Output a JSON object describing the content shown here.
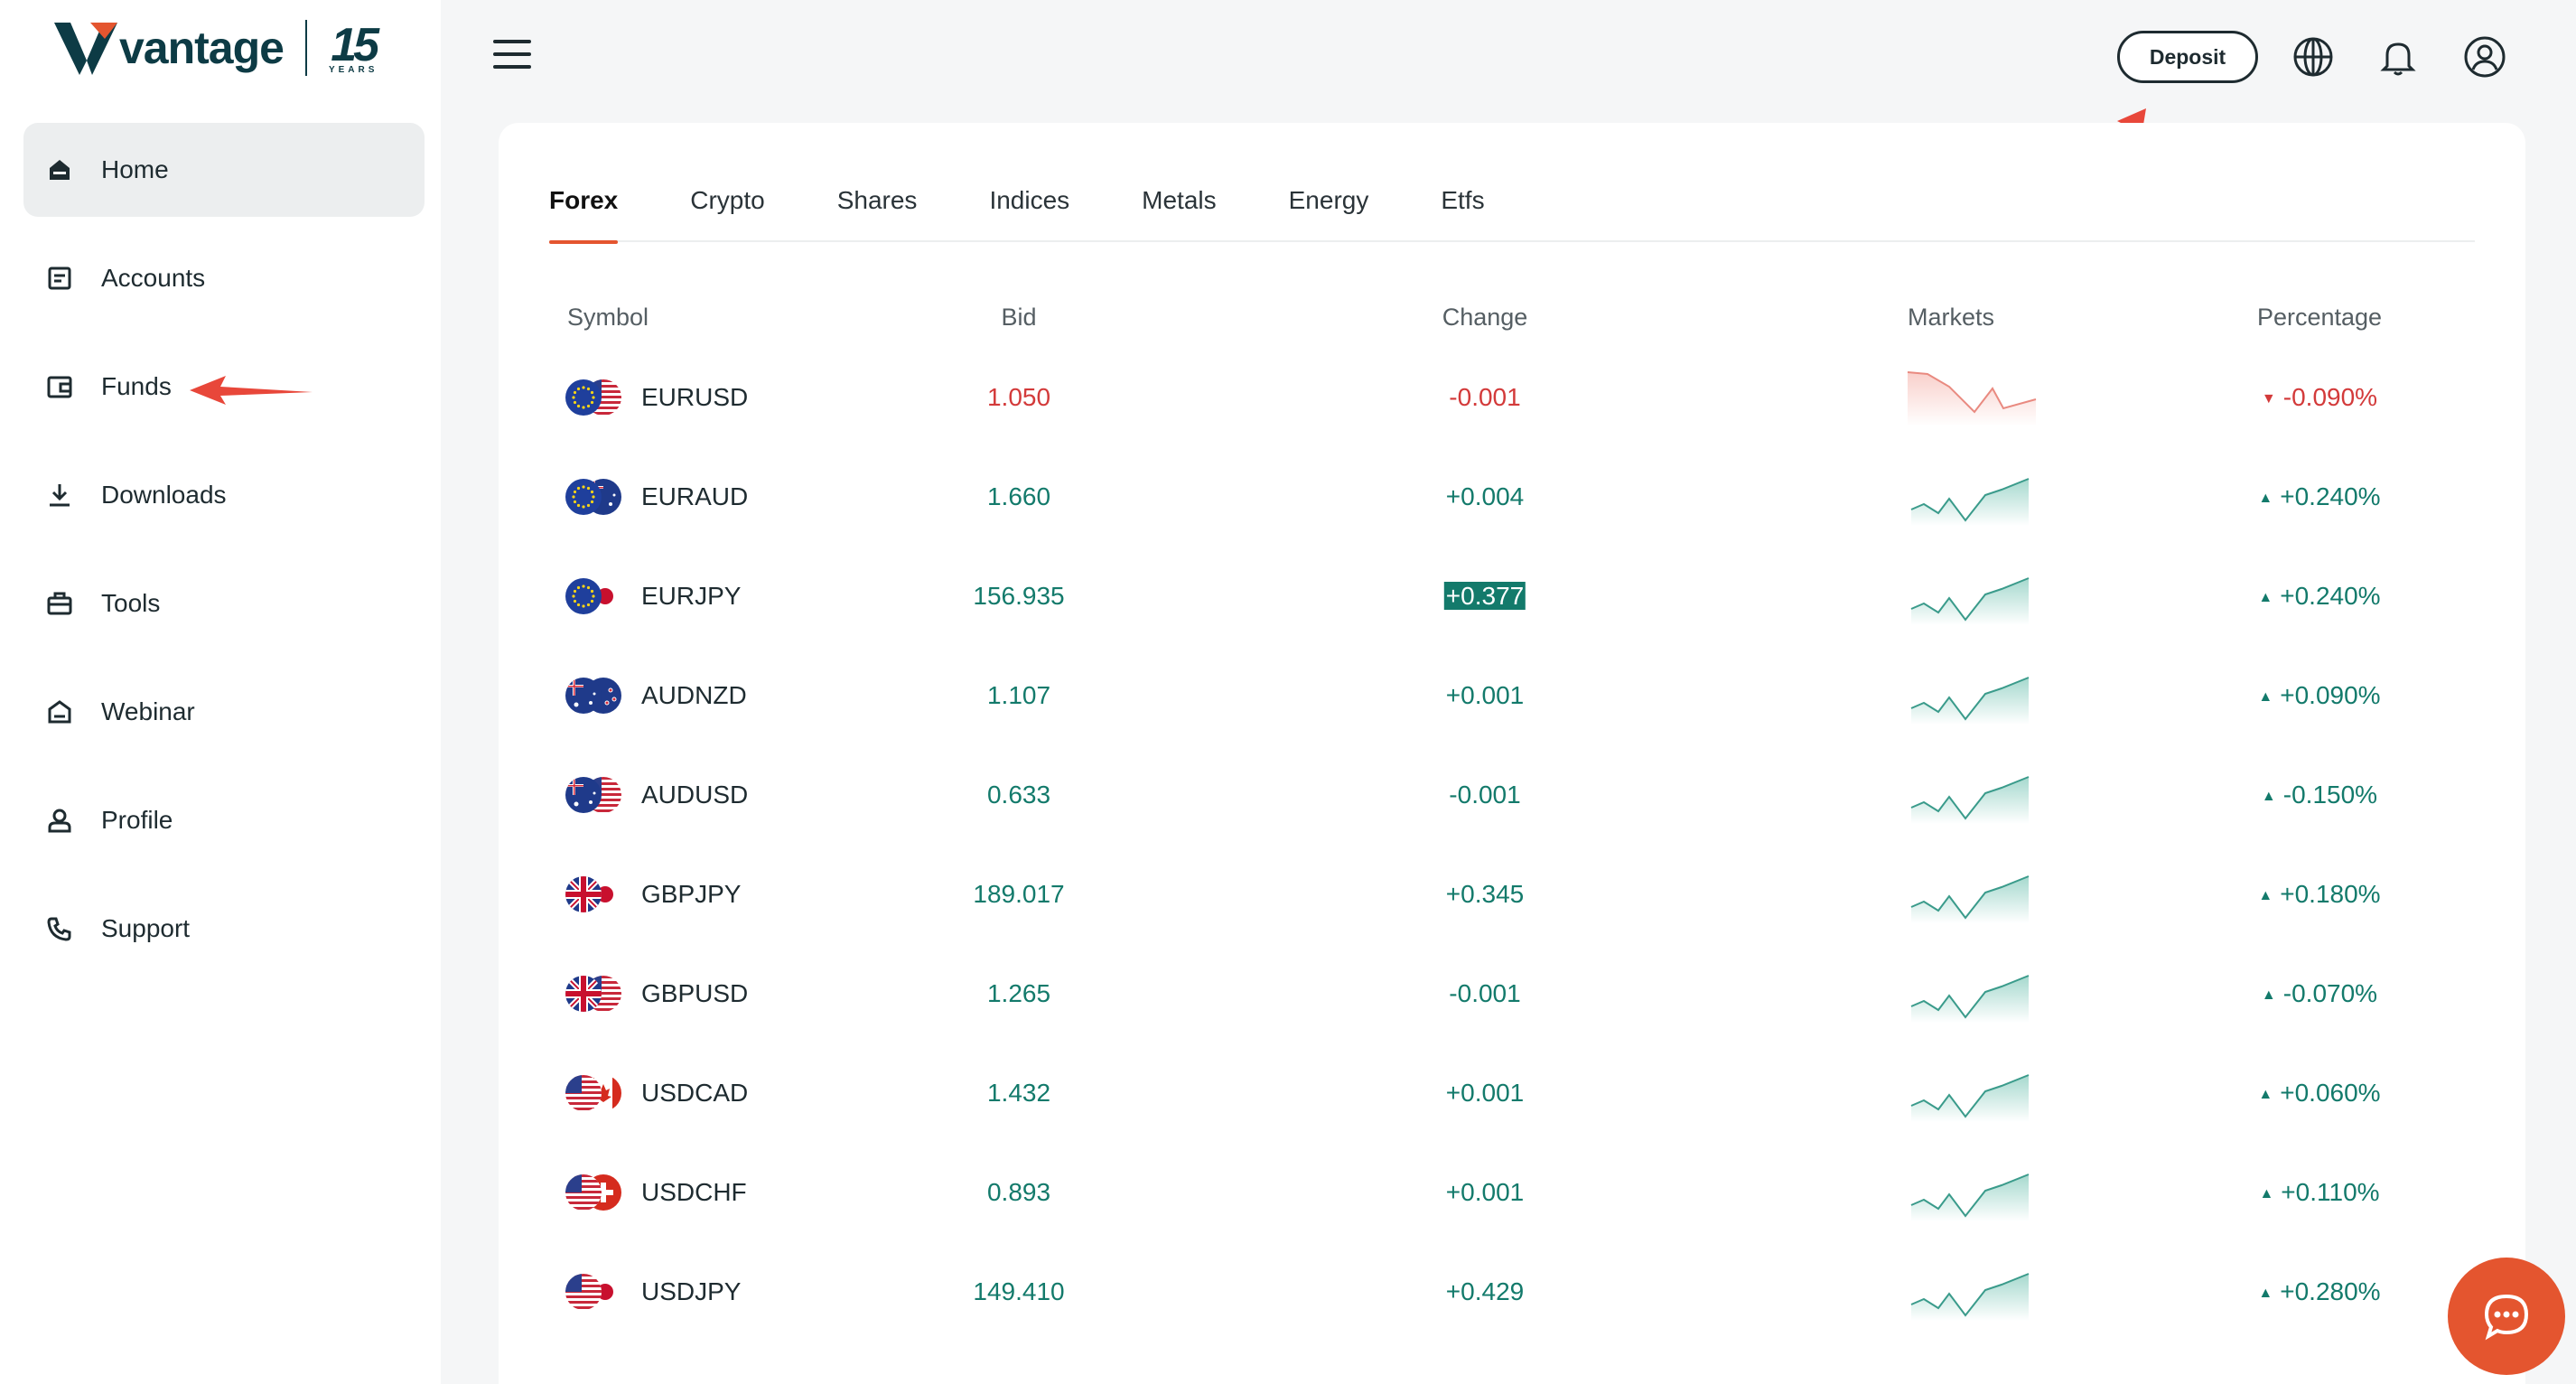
{
  "brand": {
    "name": "vantage",
    "badge_number": "15",
    "badge_text": "YEARS"
  },
  "sidebar": {
    "items": [
      {
        "label": "Home",
        "icon": "home-icon",
        "active": true
      },
      {
        "label": "Accounts",
        "icon": "accounts-icon"
      },
      {
        "label": "Funds",
        "icon": "wallet-icon"
      },
      {
        "label": "Downloads",
        "icon": "download-icon"
      },
      {
        "label": "Tools",
        "icon": "toolbox-icon"
      },
      {
        "label": "Webinar",
        "icon": "webinar-icon"
      },
      {
        "label": "Profile",
        "icon": "user-icon"
      },
      {
        "label": "Support",
        "icon": "phone-icon"
      }
    ]
  },
  "header": {
    "deposit_label": "Deposit",
    "icons": [
      "globe-icon",
      "bell-icon",
      "account-circle-icon"
    ]
  },
  "tabs": [
    "Forex",
    "Crypto",
    "Shares",
    "Indices",
    "Metals",
    "Energy",
    "Etfs"
  ],
  "active_tab": "Forex",
  "table": {
    "columns": [
      "Symbol",
      "Bid",
      "Change",
      "Markets",
      "Percentage"
    ],
    "rows": [
      {
        "symbol": "EURUSD",
        "bid": "1.050",
        "change": "-0.001",
        "percentage": "-0.090%",
        "trend": "down"
      },
      {
        "symbol": "EURAUD",
        "bid": "1.660",
        "change": "+0.004",
        "percentage": "+0.240%",
        "trend": "up"
      },
      {
        "symbol": "EURJPY",
        "bid": "156.935",
        "change": "+0.377",
        "percentage": "+0.240%",
        "trend": "up",
        "highlight": true
      },
      {
        "symbol": "AUDNZD",
        "bid": "1.107",
        "change": "+0.001",
        "percentage": "+0.090%",
        "trend": "up"
      },
      {
        "symbol": "AUDUSD",
        "bid": "0.633",
        "change": "-0.001",
        "percentage": "-0.150%",
        "trend": "up"
      },
      {
        "symbol": "GBPJPY",
        "bid": "189.017",
        "change": "+0.345",
        "percentage": "+0.180%",
        "trend": "up"
      },
      {
        "symbol": "GBPUSD",
        "bid": "1.265",
        "change": "-0.001",
        "percentage": "-0.070%",
        "trend": "up"
      },
      {
        "symbol": "USDCAD",
        "bid": "1.432",
        "change": "+0.001",
        "percentage": "+0.060%",
        "trend": "up"
      },
      {
        "symbol": "USDCHF",
        "bid": "0.893",
        "change": "+0.001",
        "percentage": "+0.110%",
        "trend": "up"
      },
      {
        "symbol": "USDJPY",
        "bid": "149.410",
        "change": "+0.429",
        "percentage": "+0.280%",
        "trend": "up"
      }
    ]
  },
  "colors": {
    "accent": "#e4552f",
    "green": "#137a6b",
    "red": "#d33a3a",
    "dark": "#0d3b45"
  },
  "chat": {
    "icon": "chat-icon"
  }
}
